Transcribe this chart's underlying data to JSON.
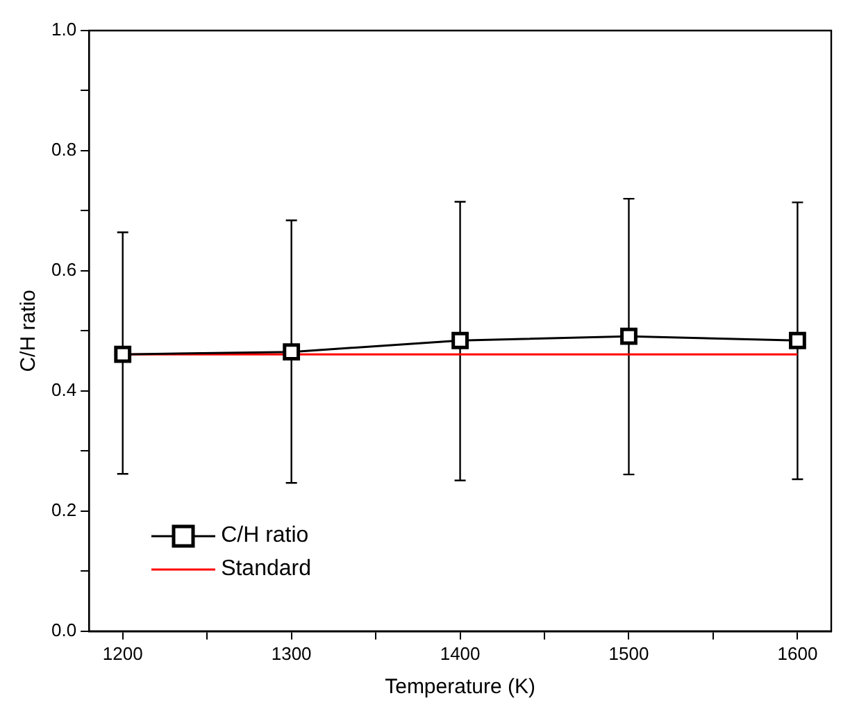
{
  "chart_data": {
    "type": "line",
    "xlabel": "Temperature (K)",
    "ylabel": "C/H ratio",
    "x": [
      1200,
      1300,
      1400,
      1500,
      1600
    ],
    "series": [
      {
        "name": "C/H ratio",
        "color": "#000000",
        "marker": "square",
        "line_style": "solid",
        "values": [
          0.461,
          0.465,
          0.484,
          0.491,
          0.484
        ],
        "errors": [
          [
            0.262,
            0.664
          ],
          [
            0.247,
            0.684
          ],
          [
            0.251,
            0.715
          ],
          [
            0.261,
            0.72
          ],
          [
            0.253,
            0.714
          ]
        ]
      },
      {
        "name": "Standard",
        "color": "#ff0000",
        "marker": "none",
        "line_style": "solid",
        "x": [
          1200,
          1600
        ],
        "values": [
          0.461,
          0.461
        ]
      }
    ],
    "xlim": [
      1180,
      1620
    ],
    "xticks": [
      1200,
      {
        "value": 1250,
        "label": null
      },
      1300,
      {
        "value": 1350,
        "label": null
      },
      1400,
      {
        "value": 1450,
        "label": null
      },
      1500,
      {
        "value": 1550,
        "label": null
      },
      1600
    ],
    "ylim": [
      0,
      1
    ],
    "yticks": [
      {
        "value": 0,
        "label": "0.0"
      },
      {
        "value": 0.1,
        "label": null
      },
      0.2,
      {
        "value": 0.3,
        "label": null
      },
      0.4,
      {
        "value": 0.5,
        "label": null
      },
      0.6,
      {
        "value": 0.7,
        "label": null
      },
      0.8,
      {
        "value": 0.9,
        "label": null
      },
      {
        "value": 1,
        "label": "1.0"
      }
    ],
    "grid": false,
    "legend": "bottom left"
  }
}
